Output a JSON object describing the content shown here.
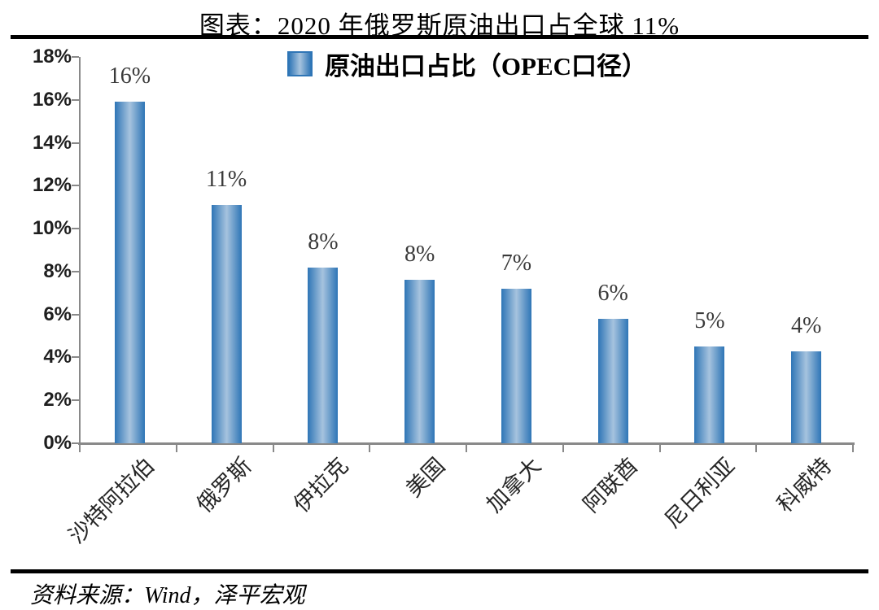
{
  "title": "图表：2020 年俄罗斯原油出口占全球 11%",
  "legend": {
    "label": "原油出口占比（OPEC口径）",
    "swatch_icon": "legend-square-icon"
  },
  "source": "资料来源：Wind，泽平宏观",
  "colors": {
    "bar_edge": "#2e75b6",
    "bar_center": "#a6c3de",
    "axis": "#898989",
    "bar_label": "#3a3a3a",
    "rule": "#000000"
  },
  "chart_data": {
    "type": "bar",
    "title": "图表：2020 年俄罗斯原油出口占全球 11%",
    "legend_entries": [
      "原油出口占比（OPEC口径）"
    ],
    "legend_position": "top-center",
    "categories": [
      "沙特阿拉伯",
      "俄罗斯",
      "伊拉克",
      "美国",
      "加拿大",
      "阿联酋",
      "尼日利亚",
      "科威特"
    ],
    "values": [
      15.9,
      11.1,
      8.2,
      7.6,
      7.2,
      5.8,
      4.5,
      4.3
    ],
    "bar_labels": [
      "16%",
      "11%",
      "8%",
      "8%",
      "7%",
      "6%",
      "5%",
      "4%"
    ],
    "xlabel": "",
    "ylabel": "",
    "ylim": [
      0,
      18
    ],
    "ytick_step": 2,
    "ytick_labels": [
      "0%",
      "2%",
      "4%",
      "6%",
      "8%",
      "10%",
      "12%",
      "14%",
      "16%",
      "18%"
    ],
    "grid": false
  }
}
